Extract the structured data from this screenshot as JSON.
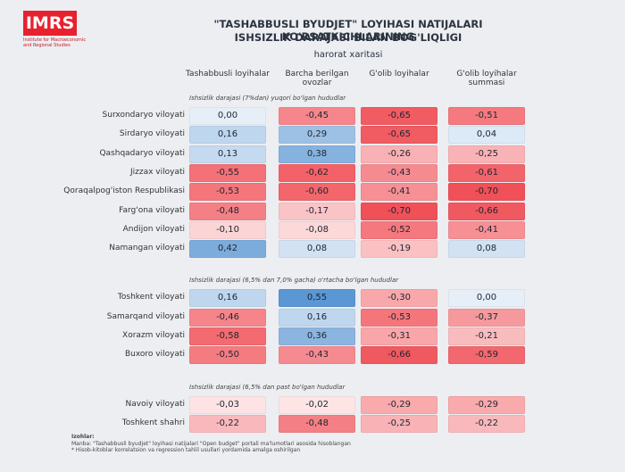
{
  "logo": {
    "name": "IMRS",
    "subtitle": "Institute for Macroeconomic and Regional Studies"
  },
  "chart_data": {
    "type": "heatmap",
    "title": [
      "\"TASHABBUSLI BYUDJET\" LOYIHASI NATIJALARI KO'RSATKICHLARINING",
      "ISHSIZLIK DARAJASI BILAN BOG'LIQLIGI"
    ],
    "subtitle": "harorat xaritasi",
    "columns": [
      "Tashabbusli loyihalar",
      "Barcha berilgan ovozlar",
      "G'olib loyihalar",
      "G'olib loyihalar summasi"
    ],
    "colorscale": {
      "negative": "#f04b52",
      "positive": "#2f7bc8",
      "zero": "#ffffff",
      "limit": 0.7
    },
    "groups": [
      {
        "label": "Ishsizlik darajasi (7%dan) yuqori bo'lgan hududlar",
        "rows": [
          "Surxondaryo viloyati",
          "Sirdaryo viloyati",
          "Qashqadaryo  viloyati",
          "Jizzax  viloyati",
          "Qoraqalpog'iston Respublikasi",
          "Farg'ona viloyati",
          "Andijon viloyati",
          "Namangan viloyati"
        ],
        "values": [
          [
            0,
            -0.45,
            -0.65,
            -0.51
          ],
          [
            0.16,
            0.29,
            -0.65,
            0.04
          ],
          [
            0.13,
            0.38,
            -0.26,
            -0.25
          ],
          [
            -0.55,
            -0.62,
            -0.43,
            -0.61
          ],
          [
            -0.53,
            -0.6,
            -0.41,
            -0.7
          ],
          [
            -0.48,
            -0.17,
            -0.7,
            -0.66
          ],
          [
            -0.1,
            -0.08,
            -0.52,
            -0.41
          ],
          [
            0.42,
            0.08,
            -0.19,
            0.08
          ]
        ],
        "value_labels": [
          [
            "0,00",
            "-0,45",
            "-0,65",
            "-0,51"
          ],
          [
            "0,16",
            "0,29",
            "-0,65",
            "0,04"
          ],
          [
            "0,13",
            "0,38",
            "-0,26",
            "-0,25"
          ],
          [
            "-0,55",
            "-0,62",
            "-0,43",
            "-0,61"
          ],
          [
            "-0,53",
            "-0,60",
            "-0,41",
            "-0,70"
          ],
          [
            "-0,48",
            "-0,17",
            "-0,70",
            "-0,66"
          ],
          [
            "-0,10",
            "-0,08",
            "-0,52",
            "-0,41"
          ],
          [
            "0,42",
            "0,08",
            "-0,19",
            "0,08"
          ]
        ]
      },
      {
        "label": "Ishsizlik darajasi (6,5% dan 7,0% gacha) o'rtacha bo'lgan hududlar",
        "rows": [
          "Toshkent viloyati",
          "Samarqand viloyati",
          "Xorazm viloyati",
          "Buxoro viloyati"
        ],
        "values": [
          [
            0.16,
            0.55,
            -0.3,
            0
          ],
          [
            -0.46,
            0.16,
            -0.53,
            -0.37
          ],
          [
            -0.58,
            0.36,
            -0.31,
            -0.21
          ],
          [
            -0.5,
            -0.43,
            -0.66,
            -0.59
          ]
        ],
        "value_labels": [
          [
            "0,16",
            "0,55",
            "-0,30",
            "0,00"
          ],
          [
            "-0,46",
            "0,16",
            "-0,53",
            "-0,37"
          ],
          [
            "-0,58",
            "0,36",
            "-0,31",
            "-0,21"
          ],
          [
            "-0,50",
            "-0,43",
            "-0,66",
            "-0,59"
          ]
        ]
      },
      {
        "label": "Ishsizlik darajasi (6,5% dan past bo'lgan hududlar",
        "rows": [
          "Navoiy viloyati",
          "Toshkent shahri"
        ],
        "values": [
          [
            -0.03,
            -0.02,
            -0.29,
            -0.29
          ],
          [
            -0.22,
            -0.48,
            -0.25,
            -0.22
          ]
        ],
        "value_labels": [
          [
            "-0,03",
            "-0,02",
            "-0,29",
            "-0,29"
          ],
          [
            "-0,22",
            "-0,48",
            "-0,25",
            "-0,22"
          ]
        ]
      }
    ]
  },
  "notes": {
    "heading": "Izohlar:",
    "lines": [
      "Manba: \"Tashabbusli byudjet\" loyihasi natijalari \"Open budget\" portali ma'lumotlari asosida hisoblangan",
      "* Hisob-kitoblar korrelatsion va regression tahlil usullari yordamida amalga oshirilgan"
    ]
  }
}
